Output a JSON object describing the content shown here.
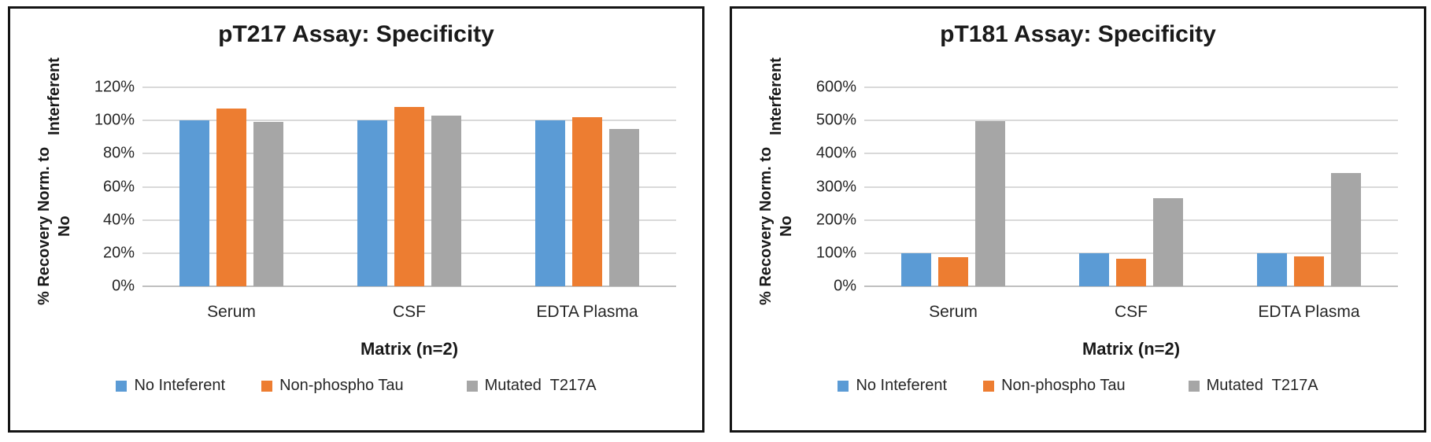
{
  "chart_data": [
    {
      "type": "bar",
      "title": "pT217 Assay: Specificity",
      "xlabel": "Matrix (n=2)",
      "ylabel": "% Recovery Norm. to No Interferent",
      "ylabel_lines": [
        "% Recovery Norm. to No",
        "Interferent"
      ],
      "categories": [
        "Serum",
        "CSF",
        "EDTA Plasma"
      ],
      "series": [
        {
          "name": "No Inteferent",
          "color": "#5B9BD5",
          "pattern": "solid",
          "values": [
            100,
            100,
            100
          ]
        },
        {
          "name": "Non-phospho Tau",
          "color": "#ED7D31",
          "pattern": "solid",
          "values": [
            107,
            108,
            102
          ]
        },
        {
          "name": "Mutated  T217A",
          "color": "#A6A6A6",
          "pattern": "vertical-stripes",
          "values": [
            99,
            103,
            95
          ]
        }
      ],
      "ylim": [
        0,
        120
      ],
      "y_tick_step": 20,
      "y_tick_labels": [
        "120%",
        "100%",
        "80%",
        "60%",
        "40%",
        "20%",
        "0%"
      ],
      "value_unit": "%",
      "grid": true,
      "legend_position": "bottom"
    },
    {
      "type": "bar",
      "title": "pT181 Assay: Specificity",
      "xlabel": "Matrix (n=2)",
      "ylabel": "% Recovery Norm. to No Interferent",
      "ylabel_lines": [
        "% Recovery Norm. to No",
        "Interferent"
      ],
      "categories": [
        "Serum",
        "CSF",
        "EDTA Plasma"
      ],
      "series": [
        {
          "name": "No Inteferent",
          "color": "#5B9BD5",
          "pattern": "solid",
          "values": [
            100,
            100,
            100
          ]
        },
        {
          "name": "Non-phospho Tau",
          "color": "#ED7D31",
          "pattern": "solid",
          "values": [
            87,
            83,
            90
          ]
        },
        {
          "name": "Mutated  T217A",
          "color": "#A6A6A6",
          "pattern": "vertical-stripes",
          "values": [
            497,
            266,
            342
          ]
        }
      ],
      "ylim": [
        0,
        600
      ],
      "y_tick_step": 100,
      "y_tick_labels": [
        "600%",
        "500%",
        "400%",
        "300%",
        "200%",
        "100%",
        "0%"
      ],
      "value_unit": "%",
      "grid": true,
      "legend_position": "bottom"
    }
  ]
}
